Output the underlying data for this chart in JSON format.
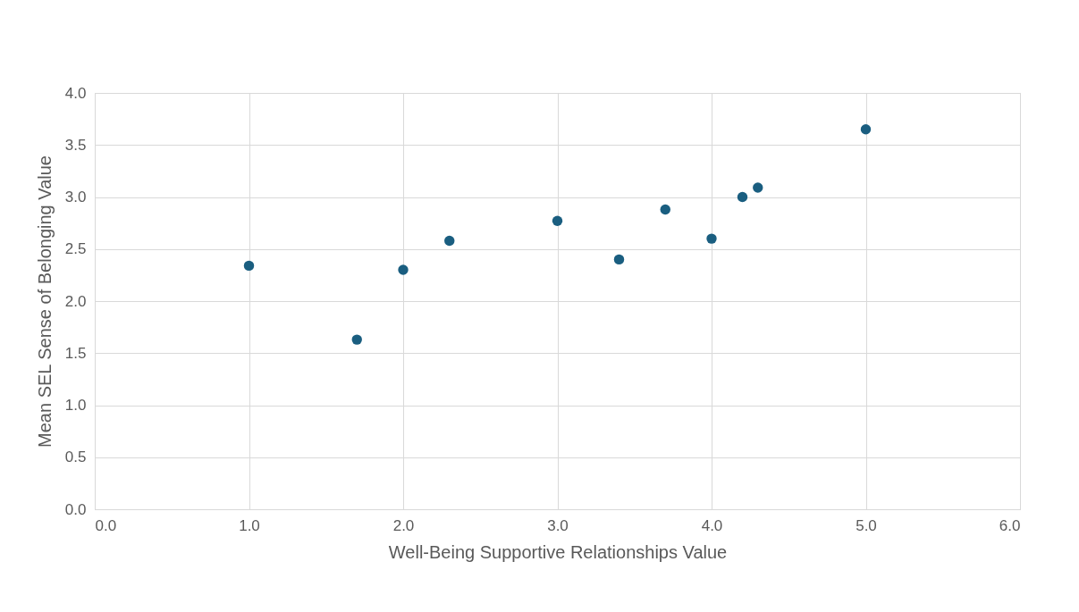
{
  "chart_data": {
    "type": "scatter",
    "xlabel": "Well-Being Supportive Relationships Value",
    "ylabel": "Mean SEL Sense of Belonging Value",
    "x": [
      1.0,
      1.7,
      2.0,
      2.3,
      3.0,
      3.4,
      3.7,
      4.0,
      4.2,
      4.3,
      5.0
    ],
    "series": [
      {
        "color": "#1a5e80",
        "values": [
          2.34,
          1.63,
          2.3,
          2.58,
          2.77,
          2.4,
          2.88,
          2.6,
          3.0,
          3.09,
          3.65
        ]
      }
    ],
    "xlim": [
      0,
      6
    ],
    "xticks": [
      {
        "value": 0,
        "label": "0.0"
      },
      {
        "value": 1,
        "label": "1.0"
      },
      {
        "value": 2,
        "label": "2.0"
      },
      {
        "value": 3,
        "label": "3.0"
      },
      {
        "value": 4,
        "label": "4.0"
      },
      {
        "value": 5,
        "label": "5.0"
      },
      {
        "value": 6,
        "label": "6.0"
      }
    ],
    "ylim": [
      0,
      4
    ],
    "yticks": [
      {
        "value": 0,
        "label": "0.0"
      },
      {
        "value": 0.5,
        "label": "0.5"
      },
      {
        "value": 1,
        "label": "1.0"
      },
      {
        "value": 1.5,
        "label": "1.5"
      },
      {
        "value": 2,
        "label": "2.0"
      },
      {
        "value": 2.5,
        "label": "2.5"
      },
      {
        "value": 3,
        "label": "3.0"
      },
      {
        "value": 3.5,
        "label": "3.5"
      },
      {
        "value": 4,
        "label": "4.0"
      }
    ],
    "grid": true,
    "marker": "circle",
    "legend": false
  }
}
